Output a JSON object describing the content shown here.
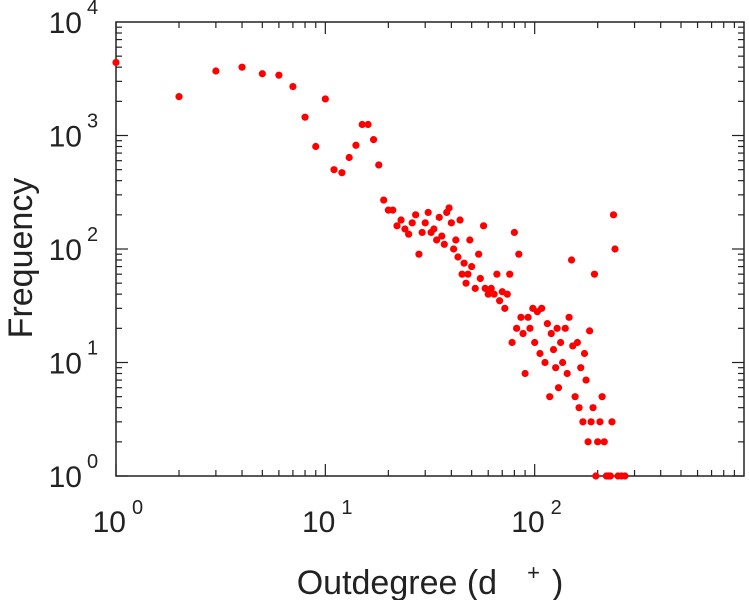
{
  "chart_data": {
    "type": "scatter",
    "xscale": "log",
    "yscale": "log",
    "xlim": [
      1,
      1000
    ],
    "ylim": [
      1,
      10000
    ],
    "xlabel": "Outdegree (d",
    "xlabel_sup": "+",
    "xlabel_close": ")",
    "ylabel": "Frequency",
    "x_tick_labels": [
      {
        "base": "10",
        "exp": "0"
      },
      {
        "base": "10",
        "exp": "1"
      },
      {
        "base": "10",
        "exp": "2"
      }
    ],
    "y_tick_labels": [
      {
        "base": "10",
        "exp": "0"
      },
      {
        "base": "10",
        "exp": "1"
      },
      {
        "base": "10",
        "exp": "2"
      },
      {
        "base": "10",
        "exp": "3"
      },
      {
        "base": "10",
        "exp": "4"
      }
    ],
    "marker_color": "#ff0000",
    "grid": false,
    "points": [
      [
        1,
        4400
      ],
      [
        2,
        2200
      ],
      [
        3,
        3700
      ],
      [
        4,
        4000
      ],
      [
        5,
        3500
      ],
      [
        6,
        3400
      ],
      [
        7,
        2700
      ],
      [
        8,
        1450
      ],
      [
        9,
        800
      ],
      [
        10,
        2100
      ],
      [
        11,
        500
      ],
      [
        12,
        470
      ],
      [
        13,
        640
      ],
      [
        14,
        820
      ],
      [
        15,
        1250
      ],
      [
        16,
        1250
      ],
      [
        17,
        920
      ],
      [
        18,
        550
      ],
      [
        19,
        270
      ],
      [
        20,
        220
      ],
      [
        21,
        220
      ],
      [
        22,
        160
      ],
      [
        23,
        180
      ],
      [
        24,
        150
      ],
      [
        25,
        135
      ],
      [
        26,
        170
      ],
      [
        27,
        200
      ],
      [
        28,
        90
      ],
      [
        29,
        140
      ],
      [
        30,
        170
      ],
      [
        31,
        210
      ],
      [
        32,
        140
      ],
      [
        33,
        150
      ],
      [
        34,
        120
      ],
      [
        35,
        190
      ],
      [
        36,
        130
      ],
      [
        37,
        110
      ],
      [
        38,
        210
      ],
      [
        39,
        230
      ],
      [
        40,
        170
      ],
      [
        41,
        100
      ],
      [
        42,
        120
      ],
      [
        43,
        85
      ],
      [
        44,
        180
      ],
      [
        45,
        60
      ],
      [
        46,
        75
      ],
      [
        47,
        50
      ],
      [
        48,
        60
      ],
      [
        49,
        120
      ],
      [
        50,
        70
      ],
      [
        52,
        45
      ],
      [
        54,
        90
      ],
      [
        55,
        55
      ],
      [
        57,
        160
      ],
      [
        58,
        45
      ],
      [
        60,
        40
      ],
      [
        62,
        45
      ],
      [
        64,
        40
      ],
      [
        66,
        60
      ],
      [
        68,
        35
      ],
      [
        70,
        42
      ],
      [
        72,
        30
      ],
      [
        74,
        40
      ],
      [
        76,
        60
      ],
      [
        78,
        15
      ],
      [
        80,
        140
      ],
      [
        82,
        20
      ],
      [
        84,
        90
      ],
      [
        86,
        25
      ],
      [
        88,
        18
      ],
      [
        90,
        8
      ],
      [
        93,
        25
      ],
      [
        95,
        20
      ],
      [
        98,
        30
      ],
      [
        100,
        15
      ],
      [
        103,
        28
      ],
      [
        106,
        12
      ],
      [
        108,
        30
      ],
      [
        112,
        10
      ],
      [
        115,
        22
      ],
      [
        118,
        5
      ],
      [
        120,
        18
      ],
      [
        123,
        13
      ],
      [
        126,
        9
      ],
      [
        128,
        20
      ],
      [
        130,
        6
      ],
      [
        133,
        15
      ],
      [
        136,
        10
      ],
      [
        140,
        20
      ],
      [
        143,
        8
      ],
      [
        146,
        25
      ],
      [
        150,
        80
      ],
      [
        152,
        14
      ],
      [
        156,
        5
      ],
      [
        160,
        15
      ],
      [
        163,
        4
      ],
      [
        166,
        9
      ],
      [
        170,
        3
      ],
      [
        173,
        12
      ],
      [
        176,
        7
      ],
      [
        180,
        2
      ],
      [
        183,
        19
      ],
      [
        186,
        3
      ],
      [
        190,
        4
      ],
      [
        193,
        60
      ],
      [
        196,
        1
      ],
      [
        200,
        2
      ],
      [
        205,
        3
      ],
      [
        210,
        5
      ],
      [
        215,
        2
      ],
      [
        220,
        1
      ],
      [
        225,
        1
      ],
      [
        230,
        1
      ],
      [
        234,
        3
      ],
      [
        238,
        200
      ],
      [
        242,
        100
      ],
      [
        250,
        1
      ],
      [
        260,
        1
      ],
      [
        270,
        1
      ]
    ]
  }
}
